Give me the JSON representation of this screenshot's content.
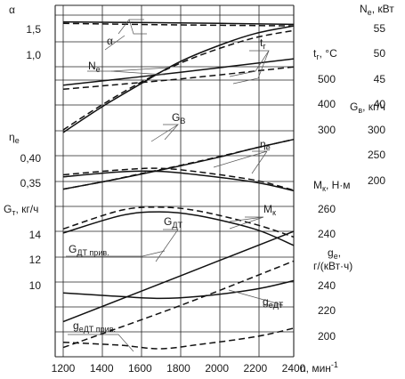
{
  "chart_data": {
    "type": "line",
    "x_axis": {
      "label": "n, мин",
      "label_superscript": "-1",
      "range": [
        1200,
        2400
      ],
      "ticks": [
        1200,
        1400,
        1600,
        1800,
        2000,
        2200,
        2400
      ]
    },
    "left_axes": [
      {
        "symbol": "α",
        "ticks": [
          "1,5",
          "1,0"
        ]
      },
      {
        "symbol": "η",
        "subscript": "e",
        "ticks": [
          "0,40",
          "0,35"
        ]
      },
      {
        "symbol": "G",
        "subscript": "т",
        "unit": ", кг/ч",
        "ticks": [
          "14",
          "12",
          "10",
          "6"
        ]
      }
    ],
    "right_inner_axes": [
      {
        "symbol": "t",
        "subscript": "г",
        "unit": ", °C",
        "ticks": [
          "500",
          "400",
          "300"
        ]
      },
      {
        "symbol": "M",
        "subscript": "к",
        "unit": ", Н·м",
        "ticks": [
          "260",
          "240"
        ]
      },
      {
        "symbol": "g",
        "subscript": "e",
        "unit": ",",
        "unit_line2": "г/(кВт·ч)",
        "ticks": [
          "240",
          "220",
          "200"
        ]
      }
    ],
    "right_outer_axes": [
      {
        "symbol": "N",
        "subscript": "e",
        "unit": ", кВт",
        "ticks": [
          "55",
          "50",
          "45",
          "40"
        ]
      },
      {
        "symbol": "G",
        "subscript": "в",
        "unit": ", кг/ч",
        "ticks": [
          "300",
          "250",
          "200"
        ]
      }
    ],
    "curve_labels": [
      {
        "id": "alpha",
        "symbol": "α",
        "subscript": ""
      },
      {
        "id": "tg",
        "symbol": "t",
        "subscript": "г"
      },
      {
        "id": "ne",
        "symbol": "N",
        "subscript": "e"
      },
      {
        "id": "gb",
        "symbol": "G",
        "subscript": "B"
      },
      {
        "id": "eta",
        "symbol": "η",
        "subscript": "e"
      },
      {
        "id": "mk",
        "symbol": "M",
        "subscript": "к"
      },
      {
        "id": "gdt",
        "symbol": "G",
        "subscript": "ДТ"
      },
      {
        "id": "gdtp",
        "symbol": "G",
        "subscript": "ДТ прив."
      },
      {
        "id": "gedt",
        "symbol": "g",
        "subscript": "eДТ"
      },
      {
        "id": "gedtp",
        "symbol": "g",
        "subscript": "eДТ прив."
      }
    ],
    "series": [
      {
        "id": "alpha_solid",
        "style": "solid",
        "axis": "α",
        "x": [
          1200,
          1800,
          2400
        ],
        "y": [
          1.65,
          1.63,
          1.6
        ]
      },
      {
        "id": "alpha_dashed",
        "style": "dashed",
        "axis": "α",
        "x": [
          1200,
          1800,
          2400
        ],
        "y": [
          1.62,
          1.59,
          1.57
        ]
      },
      {
        "id": "ne_solid",
        "style": "solid",
        "axis": "N_e",
        "x": [
          1200,
          1400,
          1600,
          1800,
          2000,
          2200,
          2400
        ],
        "y": [
          34.5,
          39.5,
          44.0,
          48.3,
          51.5,
          54.0,
          55.5
        ]
      },
      {
        "id": "ne_dashed",
        "style": "dashed",
        "axis": "N_e",
        "x": [
          1200,
          1400,
          1600,
          1800,
          2000,
          2200,
          2400
        ],
        "y": [
          35.0,
          39.9,
          44.3,
          48.0,
          50.9,
          53.2,
          54.6
        ]
      },
      {
        "id": "tg_solid",
        "style": "solid",
        "axis": "t_г",
        "x": [
          1200,
          1800,
          2400
        ],
        "y": [
          490,
          515,
          542
        ]
      },
      {
        "id": "tg_dashed",
        "style": "dashed",
        "axis": "t_г",
        "x": [
          1200,
          1800,
          2400
        ],
        "y": [
          482,
          502,
          526
        ]
      },
      {
        "id": "gb_solid",
        "style": "solid",
        "axis": "G_в",
        "x": [
          1200,
          1400,
          1600,
          1800,
          2000,
          2200,
          2400
        ],
        "y": [
          185,
          199,
          214,
          230,
          247,
          266,
          283
        ]
      },
      {
        "id": "gb_dashed",
        "style": "dashed",
        "axis": "G_в",
        "x": [
          1200,
          1400,
          1600,
          1800,
          2000,
          2200,
          2400
        ],
        "y": [
          185,
          199,
          215,
          231,
          248,
          266,
          283
        ]
      },
      {
        "id": "eta_solid",
        "style": "solid",
        "axis": "η_e",
        "x": [
          1200,
          1500,
          1700,
          1900,
          2200,
          2400
        ],
        "y": [
          0.363,
          0.373,
          0.374,
          0.367,
          0.352,
          0.335
        ]
      },
      {
        "id": "eta_dashed",
        "style": "dashed",
        "axis": "η_e",
        "x": [
          1200,
          1500,
          1700,
          1900,
          2200,
          2400
        ],
        "y": [
          0.367,
          0.377,
          0.38,
          0.373,
          0.356,
          0.336
        ]
      },
      {
        "id": "mk_solid",
        "style": "solid",
        "axis": "M_к",
        "x": [
          1200,
          1500,
          1700,
          1900,
          2200,
          2400
        ],
        "y": [
          241.5,
          255.5,
          258.5,
          255.5,
          244.5,
          231.5
        ]
      },
      {
        "id": "mk_dashed",
        "style": "dashed",
        "axis": "M_к",
        "x": [
          1200,
          1500,
          1700,
          1900,
          2200,
          2400
        ],
        "y": [
          244.8,
          259.7,
          262.2,
          259.3,
          248.4,
          238.3
        ]
      },
      {
        "id": "gdt_solid",
        "style": "solid",
        "axis": "G_т",
        "x": [
          1200,
          1800,
          2400
        ],
        "y": [
          7.2,
          10.7,
          14.2
        ]
      },
      {
        "id": "gdtp_dashed",
        "style": "dashed",
        "axis": "G_т",
        "x": [
          1200,
          1800,
          2400
        ],
        "y": [
          5.2,
          8.4,
          11.9
        ]
      },
      {
        "id": "gedt_solid",
        "style": "solid",
        "axis": "g_e",
        "x": [
          1200,
          1500,
          1700,
          1900,
          2200,
          2400
        ],
        "y": [
          234,
          231,
          229.5,
          231,
          237,
          244
        ]
      },
      {
        "id": "gedtp_dashed",
        "style": "dashed",
        "axis": "g_e",
        "x": [
          1200,
          1500,
          1700,
          1900,
          2200,
          2400
        ],
        "y": [
          193.5,
          191,
          188.2,
          191.5,
          198,
          205
        ]
      }
    ],
    "grid": true,
    "legend": "none"
  }
}
